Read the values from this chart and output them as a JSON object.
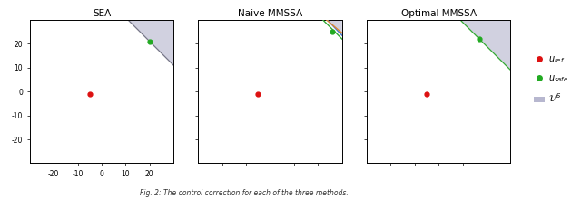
{
  "xlim": [
    -30,
    30
  ],
  "ylim": [
    -30,
    30
  ],
  "titles": [
    "SEA",
    "Naive MMSSA",
    "Optimal MMSSA"
  ],
  "fig_caption": "Fig. 2: The control correction for each of the three methods.",
  "u_ref": [
    -5,
    -1
  ],
  "u_safe_SEA": [
    20,
    21
  ],
  "u_safe_Naive": [
    26,
    25
  ],
  "u_safe_Optimal": [
    17,
    22
  ],
  "safe_region_color": "#9999bb",
  "safe_region_alpha": 0.45,
  "sea_line_intercept": 41,
  "optimal_line_intercept": 39,
  "naive_safe_x_top": 22,
  "naive_lines": [
    {
      "slope": -1.05,
      "intercept": 55,
      "color": "#4477cc"
    },
    {
      "slope": -1.0,
      "intercept": 52,
      "color": "#33aa33"
    },
    {
      "slope": -0.85,
      "intercept": 50,
      "color": "#dd8833"
    }
  ],
  "sea_yticks": [
    -20,
    -10,
    0,
    10,
    20
  ],
  "sea_xticks": [
    -20,
    -10,
    0,
    10,
    20
  ],
  "sea_ytick_labels": [
    "-20",
    "-10",
    "0",
    "10",
    "20"
  ],
  "sea_xtick_labels": [
    "-20",
    "-10",
    "0",
    "10",
    "20"
  ],
  "background": "#ffffff",
  "legend_dot_ref_color": "#dd1111",
  "legend_dot_safe_color": "#22aa22",
  "legend_patch_color": "#9999bb"
}
